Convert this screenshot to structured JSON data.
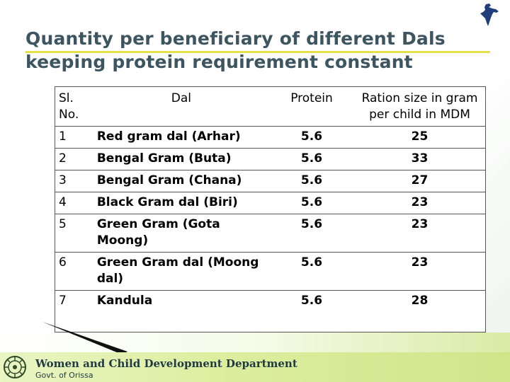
{
  "title": {
    "line1": "Quantity per beneficiary of different Dals",
    "line2": "keeping protein requirement constant"
  },
  "table": {
    "headers": {
      "sl": "Sl. No.",
      "dal": "Dal",
      "protein": "Protein",
      "ration": "Ration size in gram per child in MDM"
    },
    "rows": [
      {
        "sl": "1",
        "dal": "Red gram dal (Arhar)",
        "protein": "5.6",
        "ration": "25"
      },
      {
        "sl": "2",
        "dal": "Bengal Gram (Buta)",
        "protein": "5.6",
        "ration": "33"
      },
      {
        "sl": "3",
        "dal": "Bengal Gram (Chana)",
        "protein": "5.6",
        "ration": "27"
      },
      {
        "sl": "4",
        "dal": "Black Gram dal (Biri)",
        "protein": "5.6",
        "ration": "23"
      },
      {
        "sl": "5",
        "dal": "Green Gram (Gota Moong)",
        "protein": "5.6",
        "ration": "23"
      },
      {
        "sl": "6",
        "dal": "Green Gram dal (Moong dal)",
        "protein": "5.6",
        "ration": "23"
      },
      {
        "sl": "7",
        "dal": "Kandula",
        "protein": "5.6",
        "ration": "28"
      }
    ]
  },
  "footer": {
    "department": "Women and Child Development Department",
    "government": "Govt. of Orissa"
  },
  "colors": {
    "title": "#3d5560",
    "title_rule": "#e5e14a",
    "footer_bar": "#dcee9e",
    "map": "#1f3e7a"
  },
  "icons": {
    "map": "india-map-icon",
    "emblem": "state-emblem-icon"
  }
}
